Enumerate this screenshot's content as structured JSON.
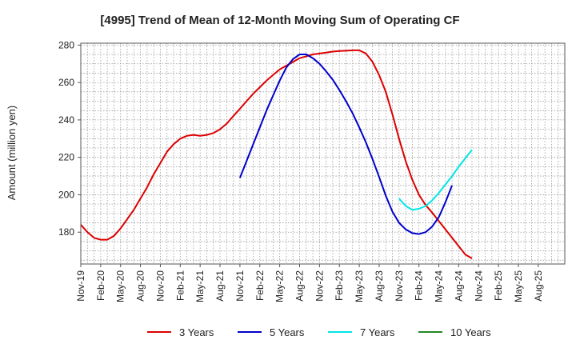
{
  "chart_data": {
    "type": "line",
    "title": "[4995]  Trend of Mean of 12-Month Moving Sum of Operating CF",
    "xlabel": "",
    "ylabel": "Amount (million yen)",
    "ylim": [
      163,
      281
    ],
    "yticks": [
      180,
      200,
      220,
      240,
      260,
      280
    ],
    "x_months_total": 73,
    "xticks": [
      {
        "label": "Nov-19",
        "index": 0
      },
      {
        "label": "Feb-20",
        "index": 3
      },
      {
        "label": "May-20",
        "index": 6
      },
      {
        "label": "Aug-20",
        "index": 9
      },
      {
        "label": "Nov-20",
        "index": 12
      },
      {
        "label": "Feb-21",
        "index": 15
      },
      {
        "label": "May-21",
        "index": 18
      },
      {
        "label": "Aug-21",
        "index": 21
      },
      {
        "label": "Nov-21",
        "index": 24
      },
      {
        "label": "Feb-22",
        "index": 27
      },
      {
        "label": "May-22",
        "index": 30
      },
      {
        "label": "Aug-22",
        "index": 33
      },
      {
        "label": "Nov-22",
        "index": 36
      },
      {
        "label": "Feb-23",
        "index": 39
      },
      {
        "label": "May-23",
        "index": 42
      },
      {
        "label": "Aug-23",
        "index": 45
      },
      {
        "label": "Nov-23",
        "index": 48
      },
      {
        "label": "Feb-24",
        "index": 51
      },
      {
        "label": "May-24",
        "index": 54
      },
      {
        "label": "Aug-24",
        "index": 57
      },
      {
        "label": "Nov-24",
        "index": 60
      },
      {
        "label": "Feb-25",
        "index": 63
      },
      {
        "label": "May-25",
        "index": 66
      },
      {
        "label": "Aug-25",
        "index": 69
      }
    ],
    "grid": true,
    "legend_position": "bottom",
    "series": [
      {
        "name": "3 Years",
        "color": "#dd0000",
        "start_index": 0,
        "values": [
          184,
          180,
          177,
          176,
          176,
          178,
          182,
          187,
          192,
          198,
          204,
          211,
          217,
          223,
          227,
          230,
          231.5,
          232,
          231.5,
          232,
          233,
          235,
          238,
          242,
          246,
          250,
          254,
          257.5,
          261,
          264,
          267,
          269,
          271,
          273,
          274,
          275,
          275.5,
          276,
          276.5,
          276.8,
          277,
          277.2,
          277.2,
          275.5,
          271,
          264,
          255,
          243,
          230,
          218,
          208,
          200,
          194.5,
          190.5,
          186,
          181.5,
          177,
          172.5,
          168,
          166
        ]
      },
      {
        "name": "5 Years",
        "color": "#0000cc",
        "start_index": 24,
        "values": [
          209,
          218,
          227,
          236,
          245,
          253,
          261,
          268,
          272.5,
          275,
          275,
          273,
          270,
          266,
          261.5,
          256,
          250,
          243.5,
          236,
          228,
          219,
          209.5,
          199.5,
          191,
          185,
          181.5,
          179.5,
          179,
          180,
          183,
          188,
          196,
          205
        ]
      },
      {
        "name": "7 Years",
        "color": "#00e5e5",
        "start_index": 48,
        "values": [
          198,
          194,
          192,
          192.5,
          194,
          197,
          201,
          205.5,
          210,
          215,
          219.5,
          224
        ]
      },
      {
        "name": "10 Years",
        "color": "#228822",
        "start_index": 60,
        "values": []
      }
    ]
  }
}
